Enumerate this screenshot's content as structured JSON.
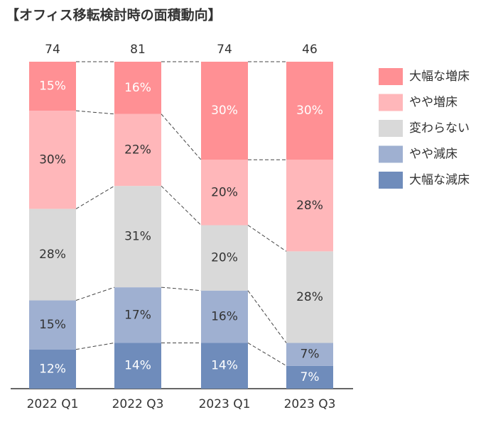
{
  "chart_data": {
    "type": "stacked_bar_100",
    "title": "【オフィス移転検討時の面積動向】",
    "categories": [
      "2022 Q1",
      "2022 Q3",
      "2023 Q1",
      "2023 Q3"
    ],
    "totals": [
      74,
      81,
      74,
      46
    ],
    "ylim": [
      0,
      100
    ],
    "series": [
      {
        "name": "大幅な減床",
        "color": "#6f8cbb",
        "label_color": "#ffffff",
        "values": [
          12,
          14,
          14,
          7
        ],
        "value_labels": [
          "12%",
          "14%",
          "14%",
          "7%"
        ]
      },
      {
        "name": "やや減床",
        "color": "#9fb0d1",
        "label_color": "#333333",
        "values": [
          15,
          17,
          16,
          7
        ],
        "value_labels": [
          "15%",
          "17%",
          "16%",
          "7%"
        ]
      },
      {
        "name": "変わらない",
        "color": "#d9d9d9",
        "label_color": "#333333",
        "values": [
          28,
          31,
          20,
          28
        ],
        "value_labels": [
          "28%",
          "31%",
          "20%",
          "28%"
        ]
      },
      {
        "name": "やや増床",
        "color": "#ffb7ba",
        "label_color": "#333333",
        "values": [
          30,
          22,
          20,
          28
        ],
        "value_labels": [
          "30%",
          "22%",
          "20%",
          "28%"
        ]
      },
      {
        "name": "大幅な増床",
        "color": "#ff9094",
        "label_color": "#ffffff",
        "values": [
          15,
          16,
          30,
          30
        ],
        "value_labels": [
          "15%",
          "16%",
          "30%",
          "30%"
        ]
      }
    ]
  }
}
